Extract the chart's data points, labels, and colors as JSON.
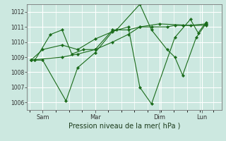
{
  "xlabel": "Pression niveau de la mer( hPa )",
  "bg_color": "#cce8e0",
  "grid_color": "#ffffff",
  "line_color": "#1a6b1a",
  "marker_color": "#1a6b1a",
  "ylim": [
    1005.5,
    1012.5
  ],
  "yticks": [
    1006,
    1007,
    1008,
    1009,
    1010,
    1011,
    1012
  ],
  "xtick_labels": [
    "Sam",
    "Mar",
    "Dim",
    "Lun"
  ],
  "xtick_positions": [
    0.08,
    0.35,
    0.68,
    0.9
  ],
  "series": [
    [
      1008.8,
      1008.8,
      1010.5,
      1010.8,
      1009.2,
      1009.5,
      1009.5,
      1010.8,
      1010.8,
      1011.0,
      1011.2,
      1011.1,
      1011.2
    ],
    [
      1008.8,
      1008.8,
      1008.8,
      1006.1,
      1008.3,
      1009.3,
      1010.7,
      1011.0,
      1007.0,
      1005.9,
      1010.3,
      1011.5,
      1010.6,
      1011.3
    ],
    [
      1008.8,
      1009.5,
      1009.8,
      1009.5,
      1010.2,
      1010.8,
      1012.5,
      1010.8,
      1009.5,
      1009.0,
      1007.8,
      1010.3,
      1011.2
    ],
    [
      1008.8,
      1009.0,
      1009.2,
      1009.5,
      1010.0,
      1010.5,
      1011.0,
      1011.0,
      1011.0,
      1011.1,
      1011.1,
      1011.1
    ]
  ],
  "x_series": [
    [
      0.02,
      0.04,
      0.12,
      0.18,
      0.23,
      0.29,
      0.35,
      0.44,
      0.52,
      0.58,
      0.68,
      0.84,
      0.92
    ],
    [
      0.02,
      0.04,
      0.08,
      0.2,
      0.26,
      0.35,
      0.44,
      0.52,
      0.58,
      0.64,
      0.76,
      0.84,
      0.88,
      0.92
    ],
    [
      0.02,
      0.08,
      0.18,
      0.26,
      0.35,
      0.46,
      0.58,
      0.64,
      0.72,
      0.76,
      0.8,
      0.87,
      0.92
    ],
    [
      0.02,
      0.18,
      0.26,
      0.35,
      0.44,
      0.52,
      0.58,
      0.64,
      0.72,
      0.76,
      0.8,
      0.92
    ]
  ]
}
